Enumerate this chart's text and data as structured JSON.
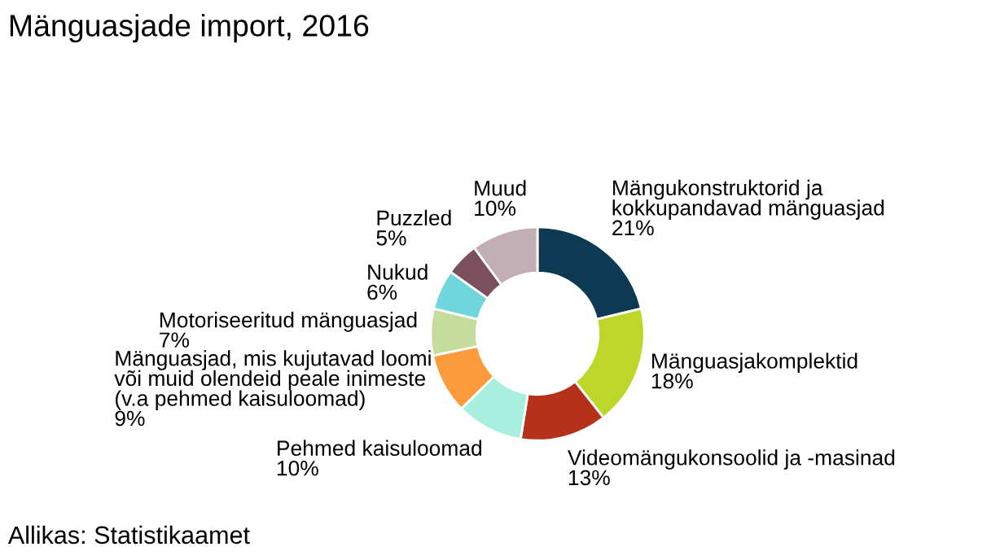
{
  "chart_data": {
    "type": "donut",
    "title": "Mänguasjade import, 2016",
    "categories": [
      "Mängukonstruktorid ja\nkokkupandavad mänguasjad",
      "Mänguasjakomplektid",
      "Videomängukonsoolid ja -masinad",
      "Pehmed kaisuloomad",
      "Mänguasjad, mis kujutavad loomi\nvõi muid olendeid peale inimeste\n(v.a pehmed kaisuloomad)",
      "Motoriseeritud mänguasjad",
      "Nukud",
      "Puzzled",
      "Muud"
    ],
    "values": [
      21,
      18,
      13,
      10,
      9,
      7,
      6,
      5,
      10
    ],
    "value_labels": [
      "21%",
      "18%",
      "13%",
      "10%",
      "9%",
      "7%",
      "6%",
      "5%",
      "10%"
    ],
    "colors": [
      "#0d3a52",
      "#bcd62a",
      "#b5321a",
      "#a8efdf",
      "#fd9a3c",
      "#c5dc9c",
      "#6fd6de",
      "#7b4f5e",
      "#c4aeb5"
    ],
    "annotations": [
      "Allikas: Statistikaamet"
    ]
  }
}
